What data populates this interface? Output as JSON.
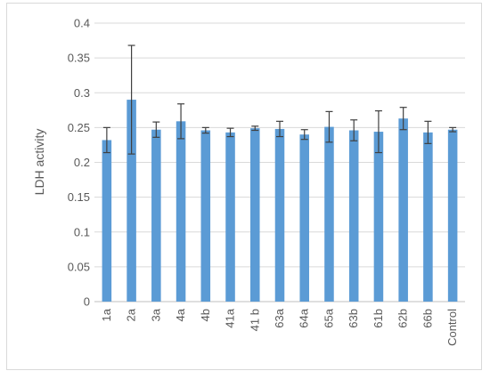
{
  "chart_data": {
    "type": "bar",
    "title": "",
    "xlabel": "",
    "ylabel": "LDH activity",
    "ylim": [
      0,
      0.4
    ],
    "yticks": [
      "0",
      "0.05",
      "0.1",
      "0.15",
      "0.2",
      "0.25",
      "0.3",
      "0.35",
      "0.4"
    ],
    "ytick_values": [
      0,
      0.05,
      0.1,
      0.15,
      0.2,
      0.25,
      0.3,
      0.35,
      0.4
    ],
    "grid": true,
    "legend": "none",
    "bar_color": "#5b9bd5",
    "error_bar_color": "#404040",
    "categories": [
      "1a",
      "2a",
      "3a",
      "4a",
      "4b",
      "41a",
      "41 b",
      "63a",
      "64a",
      "65a",
      "63b",
      "61b",
      "62b",
      "66b",
      "Control"
    ],
    "values": [
      0.232,
      0.29,
      0.247,
      0.259,
      0.246,
      0.243,
      0.249,
      0.248,
      0.24,
      0.251,
      0.246,
      0.244,
      0.263,
      0.243,
      0.247
    ],
    "errors": [
      0.018,
      0.078,
      0.011,
      0.025,
      0.004,
      0.006,
      0.003,
      0.011,
      0.007,
      0.022,
      0.015,
      0.03,
      0.016,
      0.016,
      0.003
    ]
  }
}
